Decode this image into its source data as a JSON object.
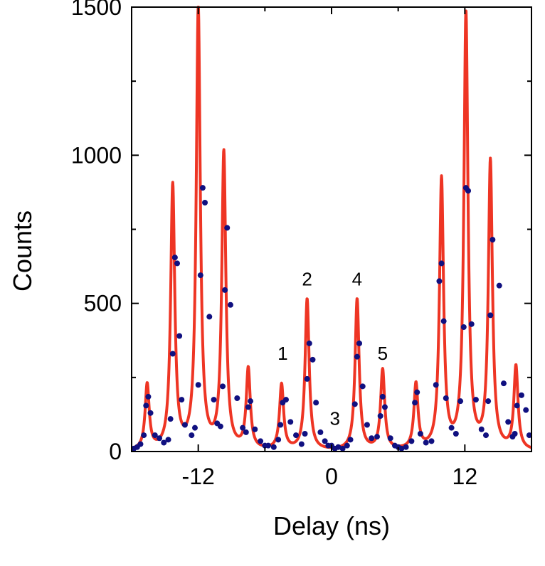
{
  "chart_data": {
    "type": "scatter",
    "title": "",
    "xlabel": "Delay (ns)",
    "ylabel": "Counts",
    "xlim": [
      -18,
      18
    ],
    "ylim": [
      0,
      1500
    ],
    "xticks": [
      -12,
      0,
      12
    ],
    "yticks": [
      0,
      500,
      1000,
      1500
    ],
    "grid": false,
    "legend": "none",
    "colors": {
      "fit": "#ee3524",
      "data": "#101080",
      "axis": "#000000"
    },
    "peak_labels": [
      {
        "text": "1",
        "x": -4.4,
        "y": 310
      },
      {
        "text": "2",
        "x": -2.2,
        "y": 560
      },
      {
        "text": "3",
        "x": 0.3,
        "y": 90
      },
      {
        "text": "4",
        "x": 2.3,
        "y": 560
      },
      {
        "text": "5",
        "x": 4.6,
        "y": 310
      }
    ],
    "series": [
      {
        "kind": "fit-line",
        "peaks": [
          {
            "x": -16.6,
            "y": 220
          },
          {
            "x": -14.3,
            "y": 890
          },
          {
            "x": -12.0,
            "y": 1490
          },
          {
            "x": -9.7,
            "y": 1000
          },
          {
            "x": -7.5,
            "y": 270
          },
          {
            "x": -4.5,
            "y": 220
          },
          {
            "x": -2.2,
            "y": 510
          },
          {
            "x": 2.3,
            "y": 510
          },
          {
            "x": 4.6,
            "y": 270
          },
          {
            "x": 7.6,
            "y": 220
          },
          {
            "x": 9.9,
            "y": 910
          },
          {
            "x": 12.1,
            "y": 1470
          },
          {
            "x": 14.3,
            "y": 970
          },
          {
            "x": 16.6,
            "y": 280
          }
        ],
        "peak_width": 0.22
      },
      {
        "kind": "data-points",
        "x": [
          -17.8,
          -17.5,
          -17.2,
          -16.9,
          -16.7,
          -16.5,
          -16.3,
          -15.9,
          -15.5,
          -15.1,
          -14.7,
          -14.5,
          -14.3,
          -14.1,
          -13.9,
          -13.7,
          -13.5,
          -13.2,
          -12.6,
          -12.3,
          -12.0,
          -11.8,
          -11.6,
          -11.4,
          -11.0,
          -10.6,
          -10.3,
          -10.0,
          -9.8,
          -9.6,
          -9.4,
          -9.1,
          -8.5,
          -8.0,
          -7.7,
          -7.5,
          -7.3,
          -6.9,
          -6.4,
          -6.0,
          -5.7,
          -5.2,
          -4.8,
          -4.6,
          -4.4,
          -4.1,
          -3.7,
          -3.2,
          -2.7,
          -2.4,
          -2.2,
          -2.0,
          -1.7,
          -1.4,
          -1.0,
          -0.6,
          -0.3,
          0.0,
          0.3,
          0.6,
          1.0,
          1.4,
          1.7,
          2.1,
          2.3,
          2.5,
          2.8,
          3.2,
          3.6,
          4.1,
          4.4,
          4.6,
          4.8,
          5.3,
          5.7,
          6.0,
          6.3,
          6.7,
          7.2,
          7.5,
          7.7,
          8.0,
          8.5,
          9.0,
          9.4,
          9.7,
          9.9,
          10.1,
          10.3,
          10.8,
          11.2,
          11.6,
          11.9,
          12.1,
          12.3,
          12.6,
          13.0,
          13.5,
          13.9,
          14.1,
          14.3,
          14.5,
          15.1,
          15.5,
          15.9,
          16.3,
          16.5,
          16.7,
          17.1,
          17.5,
          17.8
        ],
        "y": [
          10,
          15,
          25,
          55,
          155,
          185,
          130,
          55,
          45,
          30,
          40,
          110,
          330,
          655,
          635,
          390,
          175,
          90,
          55,
          80,
          225,
          595,
          890,
          840,
          455,
          175,
          95,
          85,
          220,
          545,
          755,
          495,
          180,
          80,
          65,
          150,
          170,
          75,
          35,
          20,
          20,
          15,
          40,
          90,
          165,
          175,
          100,
          55,
          25,
          60,
          245,
          365,
          310,
          165,
          65,
          35,
          20,
          20,
          10,
          15,
          10,
          20,
          40,
          160,
          320,
          365,
          220,
          90,
          45,
          50,
          120,
          185,
          150,
          45,
          20,
          15,
          10,
          15,
          35,
          165,
          200,
          60,
          30,
          35,
          225,
          575,
          635,
          440,
          180,
          80,
          60,
          170,
          420,
          890,
          880,
          430,
          175,
          75,
          55,
          170,
          460,
          715,
          560,
          230,
          100,
          50,
          60,
          155,
          190,
          140,
          55
        ]
      }
    ]
  }
}
